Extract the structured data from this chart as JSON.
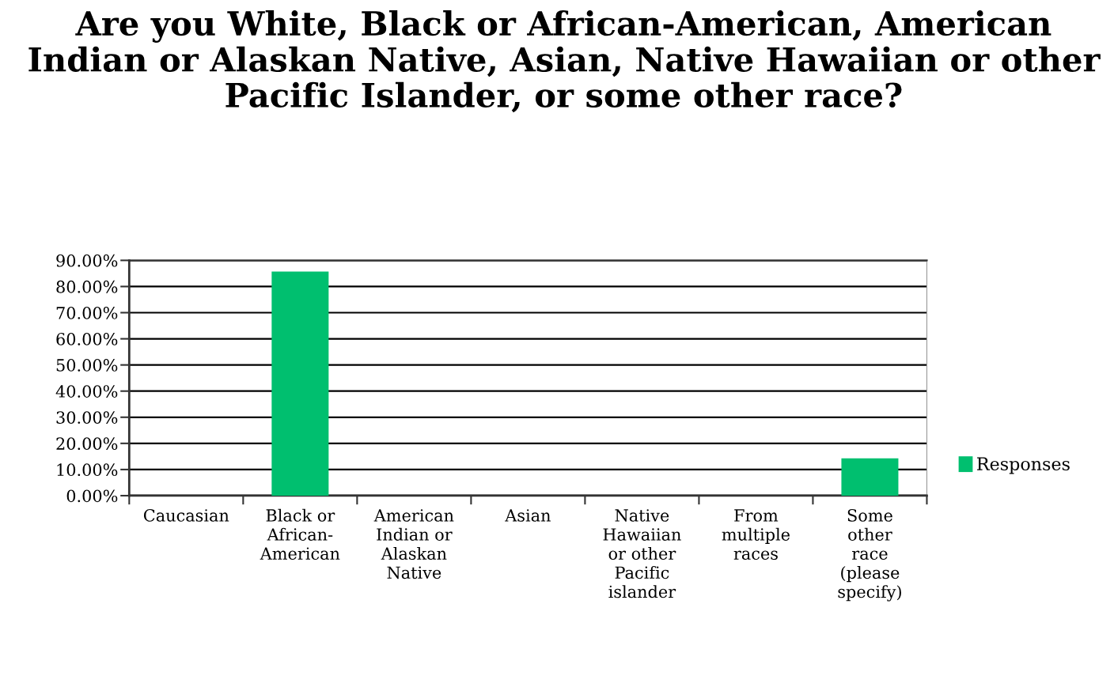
{
  "chart_data": {
    "type": "bar",
    "title": "Are you White, Black or African-American, American Indian or Alaskan Native, Asian, Native Hawaiian or other Pacific Islander, or some other race?",
    "categories": [
      "Caucasian",
      "Black or\nAfrican-\nAmerican",
      "American\nIndian or\nAlaskan\nNative",
      "Asian",
      "Native\nHawaiian\nor other\nPacific\nislander",
      "From\nmultiple\nraces",
      "Some\nother\nrace\n(please\nspecify)"
    ],
    "series": [
      {
        "name": "Responses",
        "color": "#00bf6f",
        "values": [
          0,
          85.7,
          0,
          0,
          0,
          0,
          14.3
        ]
      }
    ],
    "ylim": [
      0,
      90
    ],
    "yticks": [
      {
        "value": 0,
        "label": "0.00%"
      },
      {
        "value": 10,
        "label": "10.00%"
      },
      {
        "value": 20,
        "label": "20.00%"
      },
      {
        "value": 30,
        "label": "30.00%"
      },
      {
        "value": 40,
        "label": "40.00%"
      },
      {
        "value": 50,
        "label": "50.00%"
      },
      {
        "value": 60,
        "label": "60.00%"
      },
      {
        "value": 70,
        "label": "70.00%"
      },
      {
        "value": 80,
        "label": "80.00%"
      },
      {
        "value": 90,
        "label": "90.00%"
      }
    ],
    "grid": "y",
    "legend": "right"
  }
}
